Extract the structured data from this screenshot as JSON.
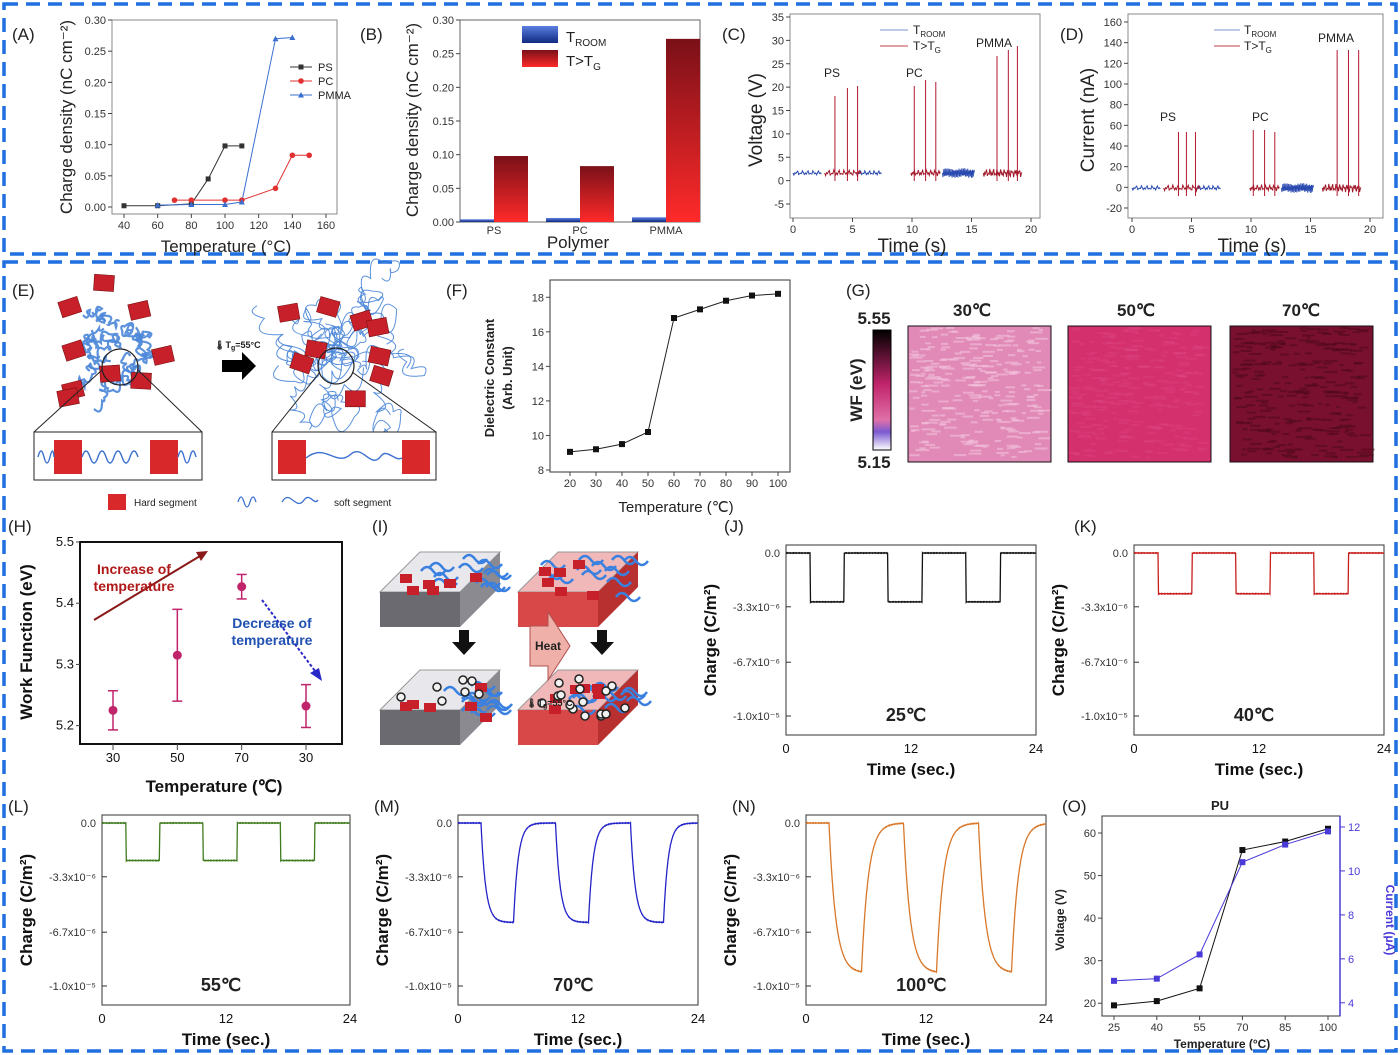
{
  "panels": {
    "A": {
      "label": "(A)",
      "xlabel": "Temperature (°C)",
      "ylabel": "Charge density (nC cm⁻²)",
      "xticks": [
        "40",
        "60",
        "80",
        "100",
        "120",
        "140",
        "160"
      ],
      "yticks": [
        "0.00",
        "0.05",
        "0.10",
        "0.15",
        "0.20",
        "0.25",
        "0.30"
      ],
      "legend": [
        "PS",
        "PC",
        "PMMA"
      ]
    },
    "B": {
      "label": "(B)",
      "xlabel": "Polymer",
      "ylabel": "Charge density (nC cm⁻²)",
      "yticks": [
        "0.00",
        "0.05",
        "0.10",
        "0.15",
        "0.20",
        "0.25",
        "0.30"
      ],
      "legend_room": "T",
      "legend_room_sub": "ROOM",
      "legend_tg": "T>T",
      "legend_tg_sub": "G"
    },
    "C": {
      "label": "(C)",
      "xlabel": "Time (s)",
      "ylabel": "Voltage (V)",
      "xticks": [
        "0",
        "5",
        "10",
        "15",
        "20"
      ],
      "yticks": [
        "-5",
        "0",
        "5",
        "10",
        "15",
        "20",
        "25",
        "30",
        "35"
      ],
      "legend_room": "T",
      "legend_room_sub": "ROOM",
      "legend_tg": "T>T",
      "legend_tg_sub": "G",
      "tags": [
        "PS",
        "PC",
        "PMMA"
      ]
    },
    "D": {
      "label": "(D)",
      "xlabel": "Time (s)",
      "ylabel": "Current (nA)",
      "xticks": [
        "0",
        "5",
        "10",
        "15",
        "20"
      ],
      "yticks": [
        "-20",
        "0",
        "20",
        "40",
        "60",
        "80",
        "100",
        "120",
        "140",
        "160"
      ],
      "legend_room": "T",
      "legend_room_sub": "ROOM",
      "legend_tg": "T>T",
      "legend_tg_sub": "G",
      "tags": [
        "PS",
        "PC",
        "PMMA"
      ]
    },
    "E": {
      "label": "(E)",
      "arrow_text": "T",
      "arrow_text_sub": "g",
      "arrow_text_tail": "=55°C",
      "hard": "Hard segment",
      "soft": "soft segment"
    },
    "F": {
      "label": "(F)",
      "xlabel": "Temperature (℃)",
      "ylabel1": "Dielectric Constant",
      "ylabel2": "(Arb. Unit)",
      "xticks": [
        "20",
        "30",
        "40",
        "50",
        "60",
        "70",
        "80",
        "90",
        "100"
      ],
      "yticks": [
        "8",
        "10",
        "12",
        "14",
        "16",
        "18"
      ]
    },
    "G": {
      "label": "(G)",
      "cb_top": "5.55",
      "cb_bottom": "5.15",
      "cb_label": "WF (eV)",
      "temps": [
        "30℃",
        "50℃",
        "70℃"
      ]
    },
    "H": {
      "label": "(H)",
      "xlabel": "Temperature (℃)",
      "ylabel": "Work Function (eV)",
      "xticks": [
        "30",
        "50",
        "70",
        "30"
      ],
      "yticks": [
        "5.2",
        "5.3",
        "5.4",
        "5.5"
      ],
      "increase": [
        "Increase of",
        "temperature"
      ],
      "decrease": [
        "Decrease of",
        "temperature"
      ]
    },
    "I": {
      "label": "(I)",
      "heat": "Heat",
      "tg": "T",
      "tg_sub": "g",
      "tg_tail": "=55°C"
    },
    "J": {
      "label": "(J)",
      "temp": "25℃"
    },
    "K": {
      "label": "(K)",
      "temp": "40℃"
    },
    "L": {
      "label": "(L)",
      "temp": "55℃"
    },
    "M": {
      "label": "(M)",
      "temp": "70℃"
    },
    "N": {
      "label": "(N)",
      "temp": "100℃"
    },
    "O": {
      "label": "(O)",
      "title": "PU",
      "xlabel": "Temperature (°C)",
      "ylabel": "Voltage (V)",
      "ylabel_right": "Current (μA)",
      "xticks": [
        "25",
        "40",
        "55",
        "70",
        "85",
        "100"
      ],
      "yticks": [
        "20",
        "30",
        "40",
        "50",
        "60"
      ],
      "yticks_right": [
        "4",
        "6",
        "8",
        "10",
        "12"
      ]
    },
    "charge_axes": {
      "xlabel": "Time (sec.)",
      "ylabel": "Charge (C/m²)",
      "xticks": [
        "0",
        "12",
        "24"
      ],
      "yticks": [
        "0.0",
        "-3.3x10⁻⁶",
        "-6.7x10⁻⁶",
        "-1.0x10⁻⁵"
      ]
    }
  },
  "colors": {
    "frame": "#1f6fe0",
    "ps": "#333333",
    "pc": "#e03030",
    "pmma": "#3a6fd0",
    "room": "#1f3f9a",
    "hot": "#c4162a",
    "magenta": "#c0246a",
    "J": "#111111",
    "K": "#c81e1e",
    "L": "#3e7a1e",
    "M": "#2424c8",
    "N": "#d8782a",
    "O_v": "#111111",
    "O_i": "#4a3ad8"
  },
  "chart_data": [
    {
      "panel": "A",
      "type": "line",
      "series": [
        {
          "name": "PS",
          "x": [
            40,
            60,
            80,
            90,
            100,
            110
          ],
          "y": [
            0.002,
            0.002,
            0.005,
            0.045,
            0.098,
            0.098
          ]
        },
        {
          "name": "PC",
          "x": [
            70,
            80,
            100,
            110,
            130,
            140,
            150
          ],
          "y": [
            0.011,
            0.011,
            0.011,
            0.011,
            0.03,
            0.083,
            0.083
          ]
        },
        {
          "name": "PMMA",
          "x": [
            60,
            80,
            100,
            110,
            130,
            140
          ],
          "y": [
            0.003,
            0.004,
            0.004,
            0.008,
            0.27,
            0.272
          ]
        }
      ],
      "xlim": [
        40,
        160
      ],
      "ylim": [
        0,
        0.3
      ]
    },
    {
      "panel": "B",
      "type": "bar",
      "categories": [
        "PS",
        "PC",
        "PMMA"
      ],
      "series": [
        {
          "name": "TROOM",
          "values": [
            0.004,
            0.006,
            0.007
          ]
        },
        {
          "name": "T>TG",
          "values": [
            0.098,
            0.083,
            0.272
          ]
        }
      ],
      "ylim": [
        0,
        0.3
      ]
    },
    {
      "panel": "F",
      "type": "line",
      "x": [
        20,
        30,
        40,
        50,
        60,
        70,
        80,
        90,
        100
      ],
      "y": [
        9.05,
        9.2,
        9.5,
        10.2,
        16.8,
        17.3,
        17.8,
        18.1,
        18.2
      ],
      "xlim": [
        20,
        100
      ],
      "ylim": [
        8,
        19
      ]
    },
    {
      "panel": "H",
      "type": "scatter",
      "categories": [
        "30",
        "50",
        "70",
        "30"
      ],
      "y": [
        5.225,
        5.315,
        5.427,
        5.232
      ],
      "err": [
        0.032,
        0.075,
        0.02,
        0.035
      ],
      "ylim": [
        5.17,
        5.5
      ]
    },
    {
      "panel": "O",
      "type": "line",
      "x": [
        25,
        40,
        55,
        70,
        85,
        100
      ],
      "series": [
        {
          "name": "Voltage (V)",
          "values": [
            19.5,
            20.5,
            23.5,
            56,
            58,
            61
          ]
        },
        {
          "name": "Current (μA)",
          "values": [
            5,
            5.1,
            6.2,
            10.4,
            11.2,
            11.8
          ]
        }
      ],
      "ylim": [
        17,
        64
      ],
      "ylim_right": [
        3.4,
        12.5
      ]
    },
    {
      "panel": "J-N",
      "type": "line",
      "note": "square-wave charge transfer vs time",
      "ylim": [
        -1e-05,
        0
      ],
      "levels": {
        "J": -3e-06,
        "K": -2.5e-06,
        "L": -2.3e-06,
        "M": -6.1e-06,
        "N": -9.2e-06
      }
    }
  ]
}
